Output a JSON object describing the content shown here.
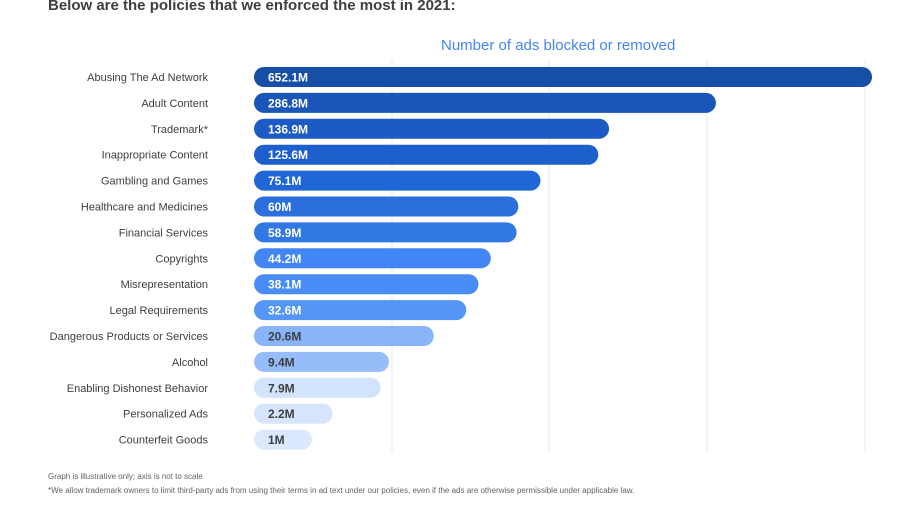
{
  "headline": "Below are the policies that we enforced the most in 2021:",
  "footnotes": {
    "scale_note": "Graph is illustrative only; axis is not to scale",
    "trademark_note": "*We allow trademark owners to limit third-party ads from using their terms in ad text under our policies, even if the ads are otherwise permissible under applicable law."
  },
  "chart_data": {
    "type": "bar",
    "orientation": "horizontal",
    "title": "Number of ads blocked or removed",
    "axis_scale": "not to scale (illustrative)",
    "grid": true,
    "legend": "none",
    "categories": [
      "Abusing The Ad Network",
      "Adult Content",
      "Trademark*",
      "Inappropriate Content",
      "Gambling and Games",
      "Healthcare and Medicines",
      "Financial Services",
      "Copyrights",
      "Misrepresentation",
      "Legal Requirements",
      "Dangerous Products or Services",
      "Alcohol",
      "Enabling Dishonest Behavior",
      "Personalized Ads",
      "Counterfeit Goods"
    ],
    "values": [
      652.1,
      286.8,
      136.9,
      125.6,
      75.1,
      60,
      58.9,
      44.2,
      38.1,
      32.6,
      20.6,
      9.4,
      7.9,
      2.2,
      1
    ],
    "value_unit": "M",
    "data_labels": [
      "652.1M",
      "286.8M",
      "136.9M",
      "125.6M",
      "75.1M",
      "60M",
      "58.9M",
      "44.2M",
      "38.1M",
      "32.6M",
      "20.6M",
      "9.4M",
      "7.9M",
      "2.2M",
      "1M"
    ],
    "bar_colors": [
      "#174ea6",
      "#1a55b8",
      "#1c5ac4",
      "#1d5fcc",
      "#1f66d6",
      "#2a6fdb",
      "#3178e2",
      "#4285f4",
      "#4a8cf5",
      "#5595f6",
      "#8ab4f8",
      "#96bdf9",
      "#d2e3fc",
      "#d6e5fc",
      "#dbe8fd"
    ],
    "label_colors": [
      "#ffffff",
      "#ffffff",
      "#ffffff",
      "#ffffff",
      "#ffffff",
      "#ffffff",
      "#ffffff",
      "#ffffff",
      "#ffffff",
      "#ffffff",
      "#3c4043",
      "#3c4043",
      "#3c4043",
      "#3c4043",
      "#3c4043"
    ]
  }
}
